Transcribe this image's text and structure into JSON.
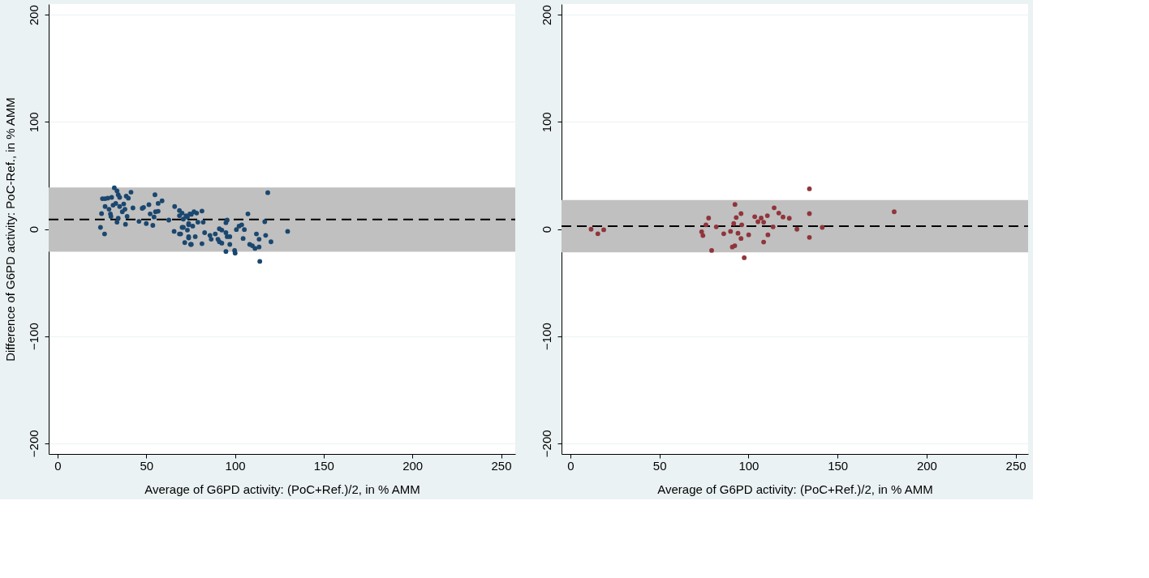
{
  "chart_data": [
    {
      "type": "scatter",
      "xlabel": "Average of G6PD activity: (PoC+Ref.)/2, in % AMM",
      "ylabel": "Difference of G6PD activity: PoC-Ref., in % AMM",
      "xlim": [
        -5,
        258
      ],
      "ylim": [
        -210,
        210
      ],
      "xticks": [
        0,
        50,
        100,
        150,
        200,
        250
      ],
      "yticks": [
        -200,
        -100,
        0,
        100,
        200
      ],
      "grid": "y",
      "marker": "circle",
      "ref_lines": [
        {
          "axis": "y",
          "value": 8.8,
          "label": null,
          "color": "#000000",
          "line_style": "dashed"
        }
      ],
      "bands": [
        {
          "axis": "y",
          "from": -21.2,
          "to": 38.8,
          "label": null,
          "color": "#c0c0c0"
        }
      ],
      "series": [
        {
          "color": "#1a476f",
          "x": [
            32.0,
            33.5,
            25.3,
            26.8,
            28.3,
            30.5,
            34.2,
            35.0,
            41.4,
            38.7,
            39.9,
            54.9,
            58.9,
            56.7,
            51.5,
            48.5,
            47.7,
            42.5,
            26.8,
            29.0,
            31.3,
            32.8,
            35.0,
            37.3,
            38.0,
            36.5,
            29.8,
            30.1,
            24.8,
            34.2,
            39.2,
            33.5,
            38.3,
            24.2,
            26.5,
            45.9,
            50.0,
            53.7,
            52.2,
            55.2,
            56.7,
            54.4,
            66.0,
            68.7,
            70.2,
            68.7,
            73.2,
            70.9,
            62.7,
            65.7,
            68.7,
            70.9,
            71.7,
            73.9,
            75.0,
            73.2,
            75.4,
            73.9,
            72.4,
            74.6,
            76.9,
            78.4,
            81.4,
            73.9,
            76.2,
            79.1,
            82.1,
            70.2,
            69.4,
            77.6,
            73.9,
            75.4,
            81.4,
            82.9,
            85.9,
            86.6,
            88.9,
            90.4,
            91.2,
            92.6,
            91.2,
            92.6,
            94.9,
            95.6,
            97.1,
            94.9,
            95.6,
            97.1,
            94.9,
            99.8,
            100.1,
            100.8,
            102.3,
            103.8,
            105.3,
            104.6,
            107.3,
            108.3,
            109.8,
            111.3,
            112.1,
            113.6,
            113.6,
            114.0,
            116.8,
            117.3,
            118.5,
            120.3,
            129.7
          ],
          "values": [
            38.5,
            35.6,
            28.3,
            28.3,
            28.8,
            29.5,
            32.0,
            29.5,
            34.4,
            30.7,
            28.8,
            32.0,
            26.3,
            23.9,
            22.7,
            20.2,
            19.3,
            19.7,
            21.0,
            18.5,
            22.2,
            23.9,
            21.0,
            23.4,
            18.5,
            16.1,
            14.1,
            11.7,
            14.4,
            10.0,
            11.7,
            6.4,
            4.4,
            1.5,
            -4.6,
            7.1,
            5.1,
            3.4,
            14.1,
            16.1,
            16.6,
            11.2,
            21.0,
            17.3,
            14.9,
            12.4,
            11.2,
            9.3,
            8.3,
            -2.2,
            -4.6,
            1.5,
            -12.7,
            -7.1,
            -14.4,
            -1.0,
            13.7,
            5.1,
            12.4,
            14.1,
            16.1,
            14.9,
            16.8,
            3.9,
            2.7,
            6.4,
            6.4,
            1.5,
            -4.6,
            -7.1,
            -8.3,
            -14.4,
            -13.7,
            -3.4,
            -5.9,
            -9.5,
            -4.6,
            -9.5,
            -11.9,
            -13.2,
            0.2,
            -1.0,
            -3.4,
            -7.1,
            -7.1,
            5.9,
            8.3,
            -14.4,
            -21.0,
            -20.0,
            -22.5,
            -0.5,
            2.7,
            3.9,
            -0.5,
            -8.8,
            14.1,
            -14.4,
            -15.6,
            -18.1,
            -4.6,
            -9.5,
            -16.8,
            -30.2,
            6.8,
            -5.9,
            33.9,
            -11.9,
            -2.2
          ]
        }
      ]
    },
    {
      "type": "scatter",
      "xlabel": "Average of G6PD activity: (PoC+Ref.)/2, in % AMM",
      "xlim": [
        -5,
        257
      ],
      "ylim": [
        -210,
        210
      ],
      "xticks": [
        0,
        50,
        100,
        150,
        200,
        250
      ],
      "yticks": [
        -200,
        -100,
        0,
        100,
        200
      ],
      "grid": "y",
      "marker": "circle",
      "ref_lines": [
        {
          "axis": "y",
          "value": 2.7,
          "label": null,
          "color": "#000000",
          "line_style": "dashed"
        }
      ],
      "bands": [
        {
          "axis": "y",
          "from": -21.7,
          "to": 27.1,
          "label": null,
          "color": "#c0c0c0"
        }
      ],
      "series": [
        {
          "color": "#90353b",
          "x": [
            11.6,
            15.4,
            18.7,
            134.2,
            181.8,
            134.2,
            134.2,
            141.4,
            127.2,
            122.9,
            119.4,
            117.0,
            114.4,
            110.6,
            113.8,
            110.9,
            108.5,
            108.5,
            107.1,
            105.3,
            103.5,
            100.1,
            97.6,
            96.2,
            95.8,
            95.8,
            94.1,
            93.1,
            92.4,
            91.7,
            92.3,
            90.9,
            89.9,
            86.1,
            81.9,
            79.3,
            77.6,
            76.1,
            74.4,
            73.7
          ],
          "values": [
            -0.2,
            -4.4,
            -0.7,
            37.5,
            16.1,
            14.4,
            -7.8,
            1.5,
            -0.2,
            10.0,
            11.2,
            14.9,
            19.8,
            12.4,
            2.0,
            -5.4,
            -12.2,
            6.4,
            10.2,
            6.8,
            11.5,
            -5.4,
            -26.8,
            3.9,
            14.4,
            -8.8,
            -3.9,
            10.7,
            22.9,
            5.1,
            -15.6,
            -16.8,
            -2.2,
            -4.4,
            2.0,
            -20.0,
            10.2,
            3.9,
            -6.1,
            -2.6
          ]
        }
      ]
    }
  ]
}
